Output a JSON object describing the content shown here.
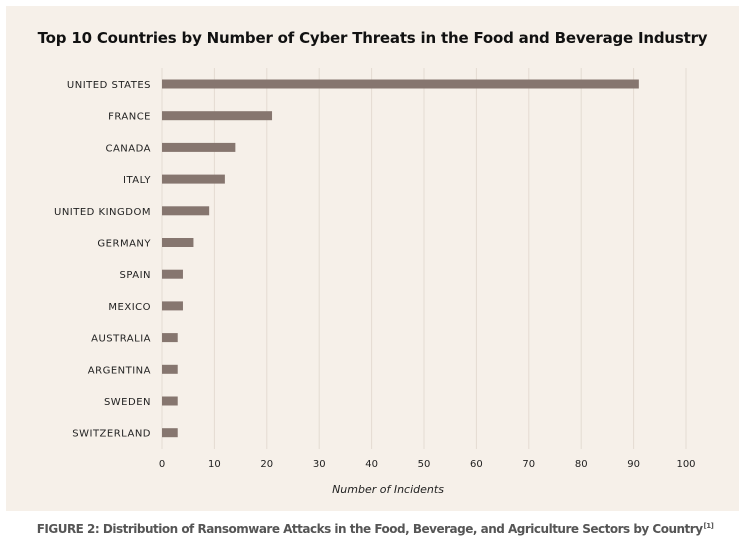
{
  "chart_data": {
    "type": "bar",
    "orientation": "horizontal",
    "title": "Top 10 Countries by Number of Cyber Threats in the Food and Beverage Industry",
    "xlabel": "Number of Incidents",
    "ylabel": "",
    "categories": [
      "UNITED STATES",
      "FRANCE",
      "CANADA",
      "ITALY",
      "UNITED KINGDOM",
      "GERMANY",
      "SPAIN",
      "MEXICO",
      "AUSTRALIA",
      "ARGENTINA",
      "SWEDEN",
      "SWITZERLAND"
    ],
    "values": [
      91,
      21,
      14,
      12,
      9,
      6,
      4,
      4,
      3,
      3,
      3,
      3
    ],
    "xlim": [
      0,
      100
    ],
    "xticks": [
      0,
      10,
      20,
      30,
      40,
      50,
      60,
      70,
      80,
      90,
      100
    ],
    "grid": "vertical",
    "legend": "none",
    "bar_color": "#86766f",
    "grid_color": "#e4dbd2"
  },
  "caption": {
    "text": "FIGURE 2: Distribution of Ransomware Attacks in the Food, Beverage, and Agriculture Sectors  by  Country",
    "reference": "[1]"
  }
}
